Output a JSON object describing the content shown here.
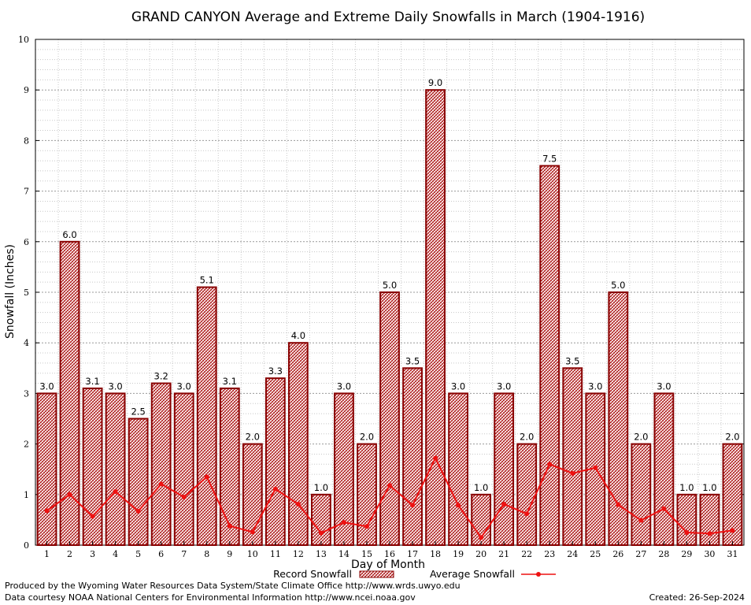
{
  "chart_data": {
    "type": "bar",
    "title": "GRAND CANYON Average and Extreme Daily Snowfalls in March (1904-1916)",
    "xlabel": "Day of Month",
    "ylabel": "Snowfall (Inches)",
    "ylim": [
      0,
      10
    ],
    "yticks": [
      0,
      1,
      2,
      3,
      4,
      5,
      6,
      7,
      8,
      9,
      10
    ],
    "grid": true,
    "legend_position": "bottom",
    "categories": [
      "1",
      "2",
      "3",
      "4",
      "5",
      "6",
      "7",
      "8",
      "9",
      "10",
      "11",
      "12",
      "13",
      "14",
      "15",
      "16",
      "17",
      "18",
      "19",
      "20",
      "21",
      "22",
      "23",
      "24",
      "25",
      "26",
      "27",
      "28",
      "29",
      "30",
      "31"
    ],
    "series": [
      {
        "name": "Record Snowfall",
        "type": "bar",
        "color": "#cc0000",
        "values": [
          3.0,
          6.0,
          3.1,
          3.0,
          2.5,
          3.2,
          3.0,
          5.1,
          3.1,
          2.0,
          3.3,
          4.0,
          1.0,
          3.0,
          2.0,
          5.0,
          3.5,
          9.0,
          3.0,
          1.0,
          3.0,
          2.0,
          7.5,
          3.5,
          3.0,
          5.0,
          2.0,
          3.0,
          1.0,
          1.0,
          2.0
        ],
        "labels": [
          "3.0",
          "6.0",
          "3.1",
          "3.0",
          "2.5",
          "3.2",
          "3.0",
          "5.1",
          "3.1",
          "2.0",
          "3.3",
          "4.0",
          "1.0",
          "3.0",
          "2.0",
          "5.0",
          "3.5",
          "9.0",
          "3.0",
          "1.0",
          "3.0",
          "2.0",
          "7.5",
          "3.5",
          "3.0",
          "5.0",
          "2.0",
          "3.0",
          "1.0",
          "1.0",
          "2.0"
        ]
      },
      {
        "name": "Average Snowfall",
        "type": "line",
        "color": "#ee1111",
        "values": [
          0.68,
          1.0,
          0.57,
          1.06,
          0.67,
          1.21,
          0.95,
          1.35,
          0.38,
          0.26,
          1.11,
          0.81,
          0.24,
          0.45,
          0.37,
          1.18,
          0.79,
          1.72,
          0.79,
          0.15,
          0.81,
          0.62,
          1.6,
          1.42,
          1.53,
          0.8,
          0.49,
          0.72,
          0.25,
          0.23,
          0.29
        ]
      }
    ]
  },
  "footer": {
    "line1": "Produced by the Wyoming Water Resources Data System/State Climate Office http://www.wrds.uwyo.edu",
    "line2": "Data courtesy NOAA National Centers for Environmental Information http://www.ncei.noaa.gov",
    "created": "Created:  26-Sep-2024"
  }
}
